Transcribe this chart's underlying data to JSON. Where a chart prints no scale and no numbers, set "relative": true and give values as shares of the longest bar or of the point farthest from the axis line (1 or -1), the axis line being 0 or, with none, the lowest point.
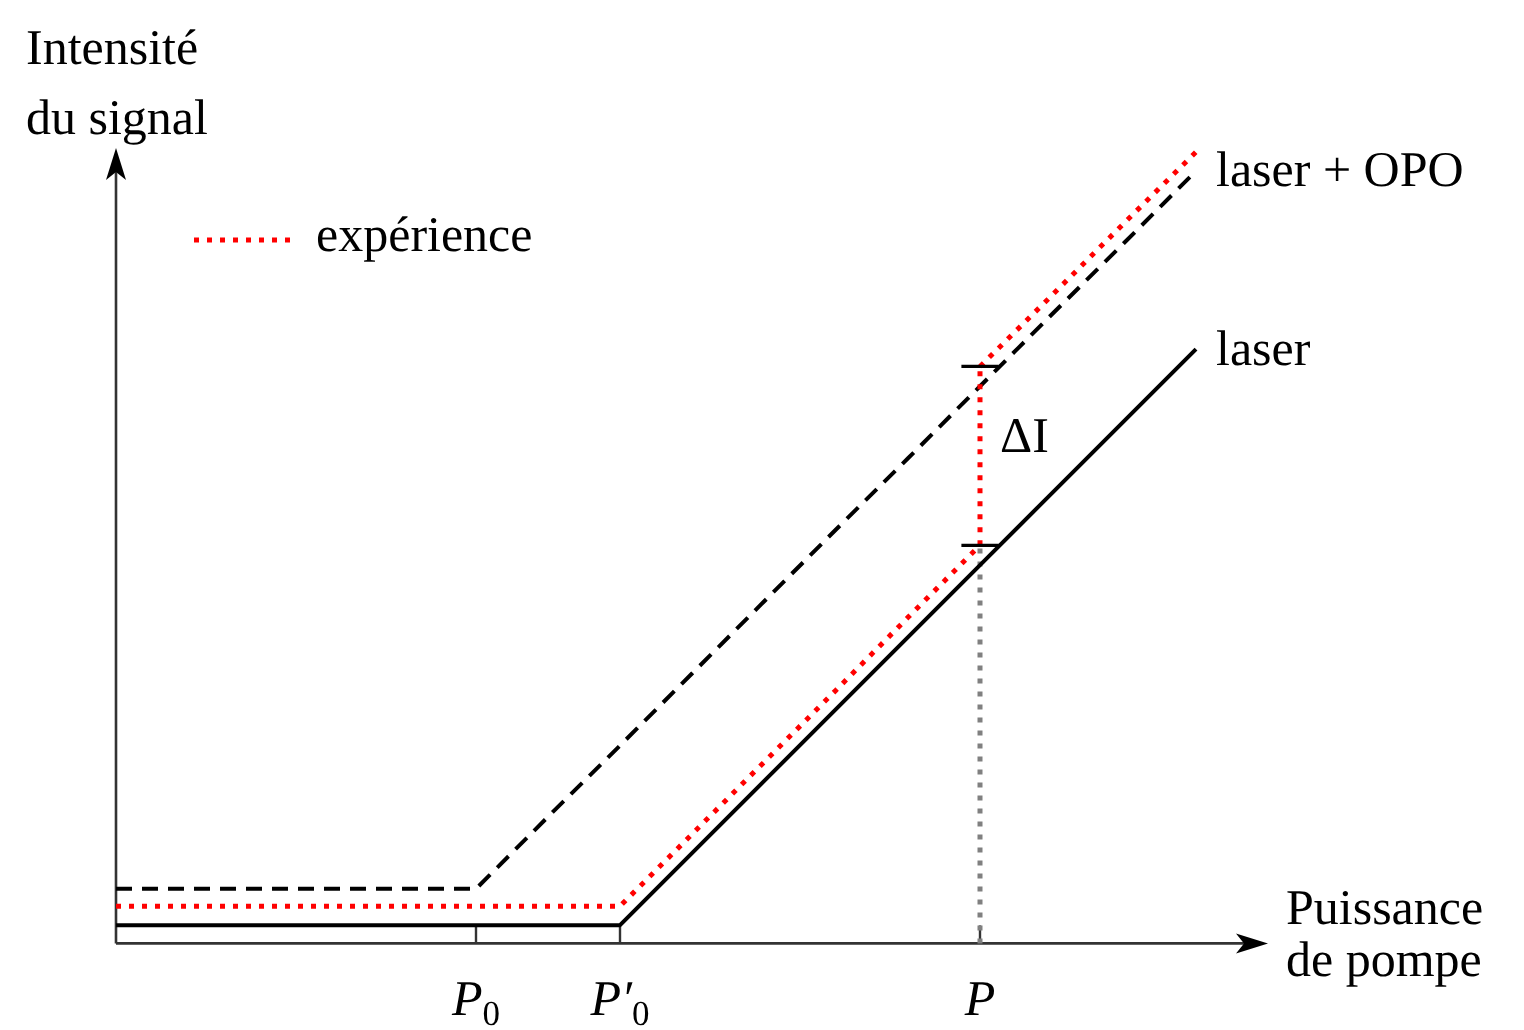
{
  "chart_data": {
    "type": "line",
    "relative": true,
    "xlabel": "Puissance de pompe",
    "ylabel": "Intensité du signal",
    "categories": [
      null,
      null,
      null,
      null,
      null,
      "P$_{0}$",
      null,
      "P′$_{0}$",
      null,
      null,
      null,
      null,
      "P",
      null,
      null,
      null
    ],
    "legend": "top left",
    "series": [
      {
        "color": "#808080",
        "line_style": "dotted",
        "x": [
          "P",
          "P"
        ],
        "values": [
          0,
          0.503
        ]
      },
      {
        "name": "laser",
        "color": "#000000",
        "line_style": "solid",
        "values": [
          0.023,
          0.023,
          0.023,
          0.023,
          0.023,
          0.023,
          0.023,
          0.023,
          0.114,
          0.205,
          0.296,
          0.387,
          0.478,
          0.569,
          0.66,
          0.751
        ]
      },
      {
        "name": "laser + OPO",
        "color": "#000000",
        "line_style": "dashed",
        "values": [
          0.069,
          0.069,
          0.069,
          0.069,
          0.069,
          0.069,
          0.16,
          0.25,
          0.341,
          0.432,
          0.523,
          0.613,
          0.704,
          0.795,
          0.885,
          0.976
        ]
      },
      {
        "name": "expérience",
        "color": "#ff0000",
        "line_style": "dotted",
        "values": [
          0.047,
          0.047,
          0.047,
          0.047,
          0.047,
          0.047,
          0.047,
          0.047,
          0.138,
          0.229,
          0.32,
          0.412,
          0.503,
          null,
          null,
          null
        ]
      },
      {
        "color": "#ff0000",
        "line_style": "dotted",
        "x": [
          "P",
          "P"
        ],
        "values": [
          0.503,
          0.729
        ]
      },
      {
        "color": "#ff0000",
        "line_style": "dotted",
        "values": [
          null,
          null,
          null,
          null,
          null,
          null,
          null,
          null,
          null,
          null,
          null,
          null,
          0.729,
          0.819,
          0.91,
          1
        ]
      }
    ],
    "annotations": [
      {
        "text": "ΔI",
        "x": "P",
        "y": 0.636
      }
    ]
  }
}
